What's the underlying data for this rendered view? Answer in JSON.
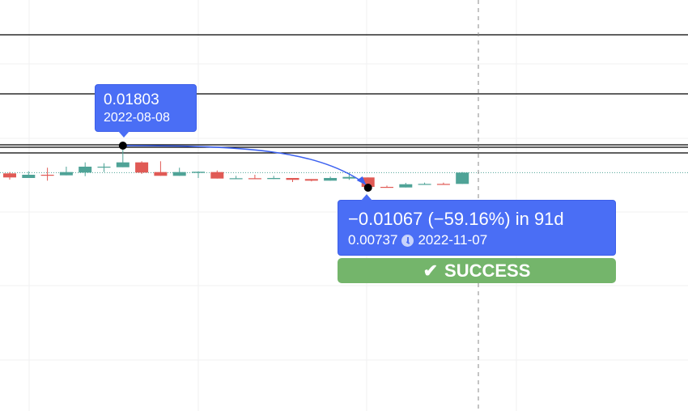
{
  "chart_data": {
    "type": "candlestick",
    "up_color": "#4fa397",
    "down_color": "#e05a55",
    "line_color": "#000000",
    "measure_color": "#4a6ef5",
    "status_color": "#74b56b",
    "grid": true,
    "candles": [
      {
        "o": 0.011,
        "h": 0.01133,
        "l": 0.00942,
        "c": 0.00997
      },
      {
        "o": 0.00983,
        "h": 0.01153,
        "l": 0.00983,
        "c": 0.01065
      },
      {
        "o": 0.01065,
        "h": 0.01243,
        "l": 0.00915,
        "c": 0.01051
      },
      {
        "o": 0.01051,
        "h": 0.0127,
        "l": 0.01051,
        "c": 0.01133
      },
      {
        "o": 0.0112,
        "h": 0.01379,
        "l": 0.0103,
        "c": 0.0127
      },
      {
        "o": 0.01256,
        "h": 0.01358,
        "l": 0.01133,
        "c": 0.0127
      },
      {
        "o": 0.01256,
        "h": 0.01803,
        "l": 0.01256,
        "c": 0.01379,
        "date": "2022-08-08"
      },
      {
        "o": 0.01379,
        "h": 0.01407,
        "l": 0.01086,
        "c": 0.0112
      },
      {
        "o": 0.01133,
        "h": 0.01407,
        "l": 0.01038,
        "c": 0.01038
      },
      {
        "o": 0.01038,
        "h": 0.01243,
        "l": 0.01038,
        "c": 0.01133
      },
      {
        "o": 0.01112,
        "h": 0.01153,
        "l": 0.00983,
        "c": 0.01141
      },
      {
        "o": 0.01133,
        "h": 0.01174,
        "l": 0.00969,
        "c": 0.00969
      },
      {
        "o": 0.00956,
        "h": 0.01038,
        "l": 0.00956,
        "c": 0.00977
      },
      {
        "o": 0.00977,
        "h": 0.01065,
        "l": 0.00956,
        "c": 0.00956
      },
      {
        "o": 0.00956,
        "h": 0.01038,
        "l": 0.00956,
        "c": 0.00983
      },
      {
        "o": 0.00983,
        "h": 0.00983,
        "l": 0.00881,
        "c": 0.00936
      },
      {
        "o": 0.00956,
        "h": 0.00956,
        "l": 0.00898,
        "c": 0.00915
      },
      {
        "o": 0.00915,
        "h": 0.01018,
        "l": 0.00915,
        "c": 0.00983
      },
      {
        "o": 0.00969,
        "h": 0.0112,
        "l": 0.00936,
        "c": 0.0101
      },
      {
        "o": 0.00997,
        "h": 0.00997,
        "l": 0.00737,
        "c": 0.00758,
        "date": "2022-11-07"
      },
      {
        "o": 0.00758,
        "h": 0.00792,
        "l": 0.0074,
        "c": 0.00743
      },
      {
        "o": 0.00743,
        "h": 0.0086,
        "l": 0.00743,
        "c": 0.00825
      },
      {
        "o": 0.00813,
        "h": 0.00866,
        "l": 0.00813,
        "c": 0.00833
      },
      {
        "o": 0.00833,
        "h": 0.00866,
        "l": 0.00813,
        "c": 0.00825
      },
      {
        "o": 0.00833,
        "h": 0.01133,
        "l": 0.00833,
        "c": 0.0112
      }
    ],
    "horizontal_levels": [
      0.04612,
      0.03115,
      0.01824,
      0.01762,
      0.01618
    ],
    "last_price": 0.0112,
    "measure": {
      "start_index": 6,
      "end_index": 19,
      "start_price": 0.01803,
      "end_price": 0.00737
    }
  },
  "start_label": {
    "price": "0.01803",
    "date": "2022-08-08"
  },
  "end_label": {
    "change": "−0.01067 (−59.16%) in 91d",
    "price": "0.00737",
    "date": "2022-11-07"
  },
  "status": {
    "icon": "check-icon",
    "glyph": "✔",
    "text": "SUCCESS"
  }
}
